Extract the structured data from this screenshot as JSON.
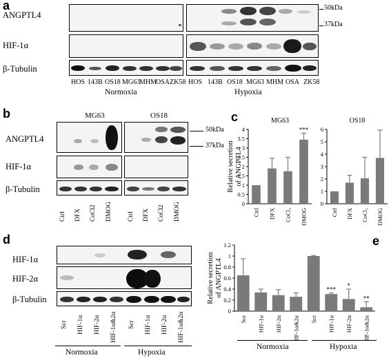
{
  "panel_labels": {
    "a": "a",
    "b": "b",
    "c": "c",
    "d": "d",
    "e": "e"
  },
  "panel_a": {
    "rows": [
      "ANGPTL4",
      "HIF-1α",
      "β-Tubulin"
    ],
    "lanes": [
      "HOS",
      "143B",
      "OS18",
      "MG63",
      "MHM",
      "OSA",
      "ZK58"
    ],
    "groups": [
      "Normoxia",
      "Hypoxia"
    ],
    "markers": [
      "50kDa",
      "37kDa"
    ]
  },
  "panel_b": {
    "rows": [
      "ANGPTL4",
      "HIF-1α",
      "β-Tubulin"
    ],
    "cells": [
      "MG63",
      "OS18"
    ],
    "lanes": [
      "Ctrl",
      "DFX",
      "CoCl2",
      "DMOG"
    ],
    "markers": [
      "50kDa",
      "37kDa"
    ]
  },
  "panel_d": {
    "rows": [
      "HIF-1α",
      "HIF-2α",
      "β-Tubulin"
    ],
    "lanes": [
      "Scr",
      "HIF-1α",
      "HIF-2α",
      "HIF-1α&2α",
      "Scr",
      "HIF-1α",
      "HIF-2α",
      "HIF-1α&2α"
    ],
    "groups": [
      "Normoxia",
      "Hypoxia"
    ]
  },
  "colors": {
    "bar": "#7a7a7a",
    "band": "#1a1a1a",
    "blot_bg": "#f4f4f4"
  },
  "chart_data": [
    {
      "type": "bar",
      "title": "MG63",
      "ylabel": "Relative secretion of ANGPTL4",
      "categories": [
        "Ctrl",
        "DFX",
        "CoCl2",
        "DMOG"
      ],
      "values": [
        1.0,
        1.9,
        1.75,
        3.45
      ],
      "errors": [
        0.0,
        0.55,
        0.75,
        0.35
      ],
      "significance": [
        "",
        "",
        "",
        "***"
      ],
      "ylim": [
        0,
        4
      ],
      "yticks": [
        0,
        0.5,
        1,
        1.5,
        2,
        2.5,
        3,
        3.5,
        4
      ]
    },
    {
      "type": "bar",
      "title": "OS18",
      "ylabel": "",
      "categories": [
        "Ctrl",
        "DFX",
        "CoCl2",
        "DMOG"
      ],
      "values": [
        1.0,
        1.7,
        2.05,
        3.7
      ],
      "errors": [
        0.0,
        0.6,
        1.7,
        2.25
      ],
      "significance": [
        "",
        "",
        "",
        ""
      ],
      "ylim": [
        0,
        6
      ],
      "yticks": [
        0,
        1,
        2,
        3,
        4,
        5,
        6
      ]
    },
    {
      "type": "bar",
      "title": "",
      "ylabel": "Relative secretion of ANGPTL4",
      "categories": [
        "Scr",
        "HIF-1α",
        "HIF-2α",
        "HIF-1α&2α",
        "Scr",
        "HIF-1α",
        "HIF-2α",
        "HIF-1α&2α"
      ],
      "groups": [
        "Normoxia",
        "Hypoxia"
      ],
      "values": [
        0.65,
        0.34,
        0.29,
        0.26,
        1.0,
        0.31,
        0.22,
        0.07
      ],
      "errors": [
        0.3,
        0.06,
        0.1,
        0.07,
        0.01,
        0.02,
        0.18,
        0.1
      ],
      "significance": [
        "",
        "",
        "",
        "",
        "",
        "***",
        "*",
        "**"
      ],
      "ylim": [
        0,
        1.2
      ],
      "yticks": [
        0,
        0.2,
        0.4,
        0.6,
        0.8,
        1,
        1.2
      ]
    }
  ]
}
